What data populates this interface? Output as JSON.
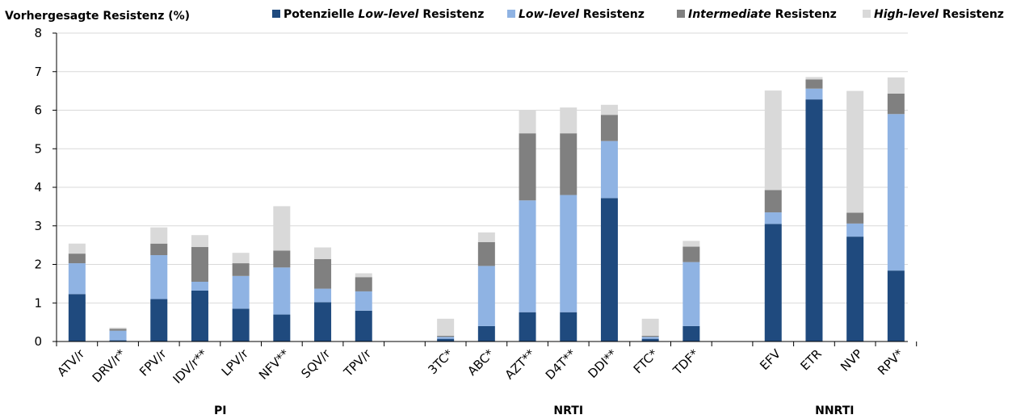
{
  "chart_data": {
    "type": "bar",
    "stacked": true,
    "ylabel": "Vorhergesagte Resistenz (%)",
    "ylim": [
      0,
      8
    ],
    "yticks": [
      0,
      1,
      2,
      3,
      4,
      5,
      6,
      7,
      8
    ],
    "grid": true,
    "legend_placement": "top",
    "legend": [
      {
        "prefix": "Potenzielle ",
        "em": "Low-level",
        "suffix": " Resistenz"
      },
      {
        "prefix": "",
        "em": "Low-level",
        "suffix": " Resistenz"
      },
      {
        "prefix": "",
        "em": "Intermediate",
        "suffix": " Resistenz"
      },
      {
        "prefix": "",
        "em": "High-level",
        "suffix": " Resistenz"
      }
    ],
    "colors": [
      "#1f4a7e",
      "#8fb3e3",
      "#808080",
      "#d9d9d9"
    ],
    "groups": [
      {
        "name": "PI",
        "categories": [
          "ATV/r",
          "DRV/r*",
          "FPV/r",
          "IDV/r**",
          "LPV/r",
          "NFV**",
          "SQV/r",
          "TPV/r"
        ]
      },
      {
        "name": "NRTI",
        "categories": [
          "3TC*",
          "ABC*",
          "AZT**",
          "D4T**",
          "DDI**",
          "FTC*",
          "TDF*"
        ]
      },
      {
        "name": "NNRTI",
        "categories": [
          "EFV",
          "ETR",
          "NVP",
          "RPV*"
        ]
      }
    ],
    "series": [
      {
        "name": "Potenzielle Low-level Resistenz",
        "values": [
          1.23,
          0.03,
          1.1,
          1.32,
          0.85,
          0.7,
          1.02,
          0.8,
          0.07,
          0.4,
          0.76,
          0.76,
          3.72,
          0.07,
          0.4,
          3.05,
          6.28,
          2.72,
          1.84
        ]
      },
      {
        "name": "Low-level Resistenz",
        "values": [
          0.8,
          0.25,
          1.14,
          0.23,
          0.85,
          1.22,
          0.35,
          0.5,
          0.05,
          1.56,
          2.9,
          3.04,
          1.48,
          0.05,
          1.66,
          0.3,
          0.28,
          0.34,
          4.06
        ]
      },
      {
        "name": "Intermediate Resistenz",
        "values": [
          0.25,
          0.05,
          0.3,
          0.9,
          0.33,
          0.44,
          0.77,
          0.37,
          0.03,
          0.62,
          1.74,
          1.6,
          0.68,
          0.03,
          0.4,
          0.58,
          0.24,
          0.28,
          0.53
        ]
      },
      {
        "name": "High-level Resistenz",
        "values": [
          0.26,
          0.03,
          0.42,
          0.31,
          0.27,
          1.15,
          0.3,
          0.1,
          0.44,
          0.25,
          0.6,
          0.67,
          0.26,
          0.44,
          0.15,
          2.58,
          0.06,
          3.16,
          0.42
        ]
      }
    ]
  }
}
